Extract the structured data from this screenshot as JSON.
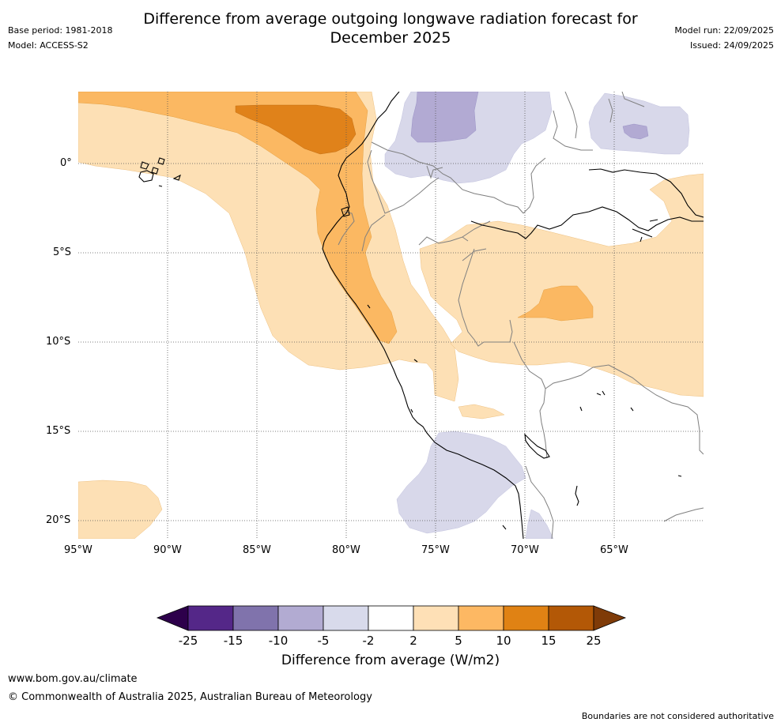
{
  "header": {
    "title_line1": "Difference from average outgoing longwave radiation forecast for",
    "title_line2": "December 2025",
    "base_period": "Base period: 1981-2018",
    "model": "Model: ACCESS-S2",
    "model_run": "Model run: 22/09/2025",
    "issued": "Issued: 24/09/2025"
  },
  "map": {
    "lat_labels": [
      "0°",
      "5°S",
      "10°S",
      "15°S",
      "20°S"
    ],
    "lon_labels": [
      "95°W",
      "90°W",
      "85°W",
      "80°W",
      "75°W",
      "70°W",
      "65°W"
    ],
    "colors": {
      "land_line": "#000000",
      "border_line": "#7f7f7f",
      "neg_2_5": "#d8d8ea",
      "neg_5_10": "#b2aad3",
      "pos_2_5": "#fde0b5",
      "pos_5_10": "#fbb862",
      "pos_10_15": "#e0821a"
    }
  },
  "colorbar": {
    "title": "Difference from average (W/m2)",
    "ticks": [
      "-25",
      "-15",
      "-10",
      "-5",
      "-2",
      "2",
      "5",
      "10",
      "15",
      "25"
    ],
    "colors": [
      "#2d004b",
      "#542788",
      "#8073ac",
      "#b2abd2",
      "#d8daeb",
      "#ffffff",
      "#fee0b6",
      "#fdb863",
      "#e08214",
      "#b35806",
      "#7f3b08"
    ]
  },
  "footer": {
    "url": "www.bom.gov.au/climate",
    "copyright": "© Commonwealth of Australia 2025, Australian Bureau of Meteorology",
    "disclaimer": "Boundaries are not considered authoritative"
  }
}
